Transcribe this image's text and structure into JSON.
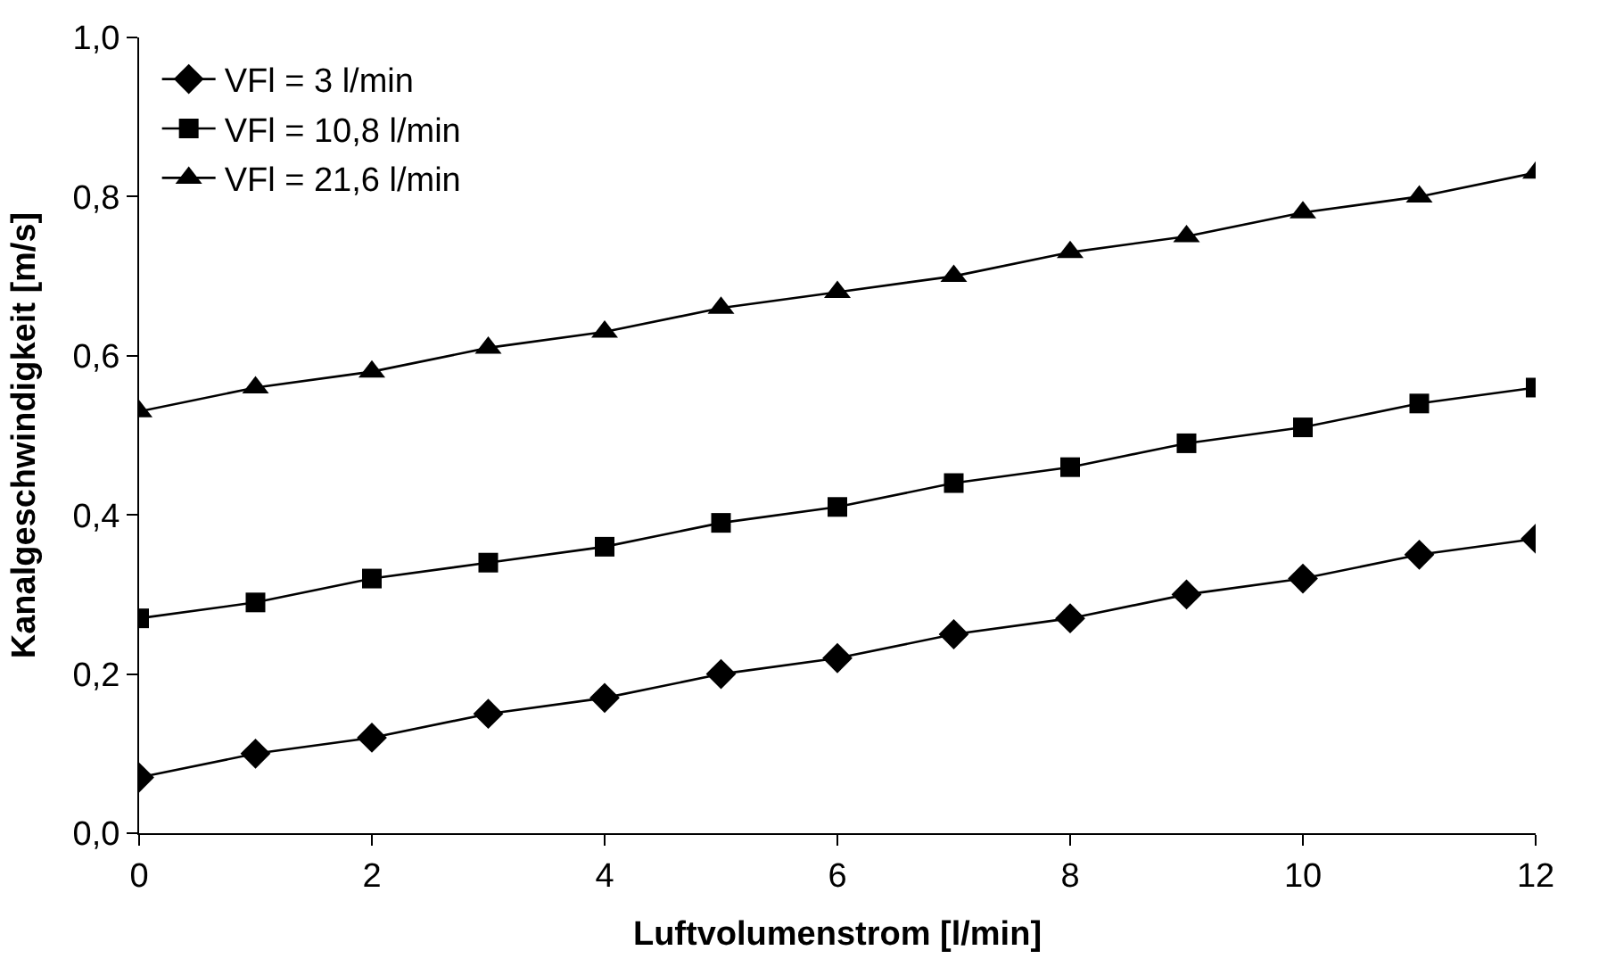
{
  "chart_data": {
    "type": "line",
    "xlabel": "Luftvolumenstrom [l/min]",
    "ylabel": "Kanalgeschwindigkeit [m/s]",
    "x": [
      0,
      1,
      2,
      3,
      4,
      5,
      6,
      7,
      8,
      9,
      10,
      11,
      12
    ],
    "series": [
      {
        "name": "VFl = 3 l/min",
        "color": "#000000",
        "marker": "diamond",
        "values": [
          0.07,
          0.1,
          0.12,
          0.15,
          0.17,
          0.2,
          0.22,
          0.25,
          0.27,
          0.3,
          0.32,
          0.35,
          0.37
        ]
      },
      {
        "name": "VFl = 10,8 l/min",
        "color": "#000000",
        "marker": "square",
        "values": [
          0.27,
          0.29,
          0.32,
          0.34,
          0.36,
          0.39,
          0.41,
          0.44,
          0.46,
          0.49,
          0.51,
          0.54,
          0.56
        ]
      },
      {
        "name": "VFl = 21,6 l/min",
        "color": "#000000",
        "marker": "triangle",
        "values": [
          0.53,
          0.56,
          0.58,
          0.61,
          0.63,
          0.66,
          0.68,
          0.7,
          0.73,
          0.75,
          0.78,
          0.8,
          0.83
        ]
      }
    ],
    "xlim": [
      0,
      12
    ],
    "xticks": [
      0,
      2,
      4,
      6,
      8,
      10,
      12
    ],
    "ylim": [
      0,
      1
    ],
    "yticks": [
      {
        "value": 0,
        "label": "0,0"
      },
      {
        "value": 0.2,
        "label": "0,2"
      },
      {
        "value": 0.4,
        "label": "0,4"
      },
      {
        "value": 0.6,
        "label": "0,6"
      },
      {
        "value": 0.8,
        "label": "0,8"
      },
      {
        "value": 1,
        "label": "1,0"
      }
    ],
    "legend": "top left",
    "line_style": "solid"
  }
}
